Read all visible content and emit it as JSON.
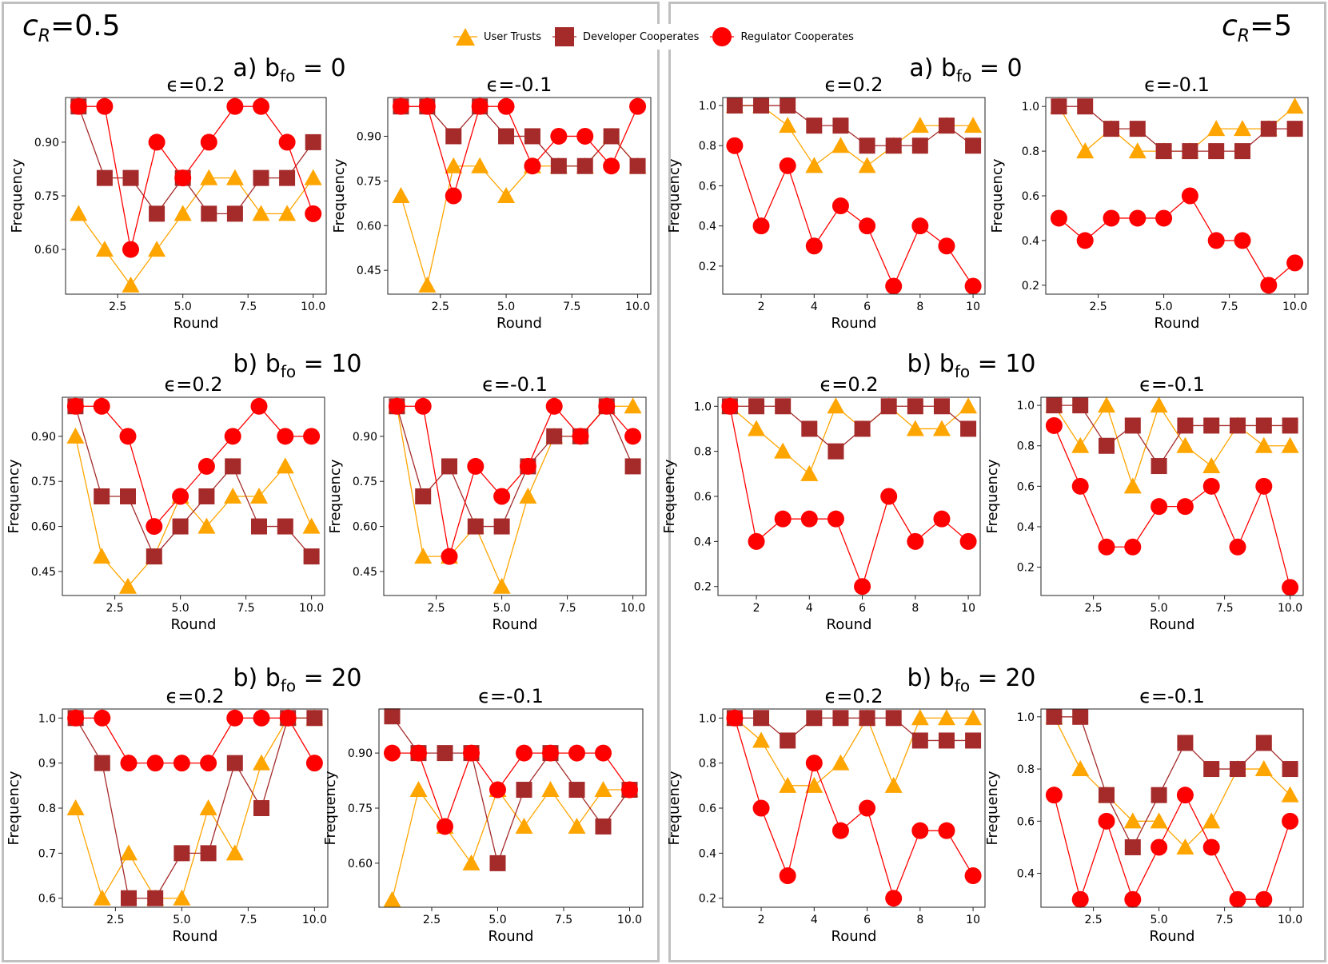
{
  "legend": {
    "items": [
      {
        "name": "User Trusts",
        "color": "#FFA500",
        "marker": "triangle"
      },
      {
        "name": "Developer Cooperates",
        "color": "#A52A2A",
        "marker": "square"
      },
      {
        "name": "Regulator Cooperates",
        "color": "#FF0000",
        "marker": "circle"
      }
    ]
  },
  "panels": [
    {
      "label_main": "c",
      "label_sub": "R",
      "label_val": "=0.5"
    },
    {
      "label_main": "c",
      "label_sub": "R",
      "label_val": "=5"
    }
  ],
  "rows": [
    {
      "prefix": "a) b",
      "sub": "fo",
      "suffix": " = 0"
    },
    {
      "prefix": "b) b",
      "sub": "fo",
      "suffix": " = 10"
    },
    {
      "prefix": "b) b",
      "sub": "fo",
      "suffix": " = 20"
    }
  ],
  "chart_data": [
    {
      "id": "L-a-1",
      "type": "line",
      "title": "ϵ=0.2",
      "xlabel": "Round",
      "ylabel": "Frequency",
      "xlim": [
        0.5,
        10.5
      ],
      "ylim": [
        0.475,
        1.025
      ],
      "xticks": [
        2.5,
        5.0,
        7.5,
        10.0
      ],
      "xtick_labels": [
        "2.5",
        "5.0",
        "7.5",
        "10.0"
      ],
      "yticks": [
        0.6,
        0.75,
        0.9
      ],
      "ytick_labels": [
        "0.60",
        "0.75",
        "0.90"
      ],
      "x": [
        1,
        2,
        3,
        4,
        5,
        6,
        7,
        8,
        9,
        10
      ],
      "series": [
        {
          "name": "User Trusts",
          "values": [
            0.7,
            0.6,
            0.5,
            0.6,
            0.7,
            0.8,
            0.8,
            0.7,
            0.7,
            0.8
          ]
        },
        {
          "name": "Developer Cooperates",
          "values": [
            1.0,
            0.8,
            0.8,
            0.7,
            0.8,
            0.7,
            0.7,
            0.8,
            0.8,
            0.9
          ]
        },
        {
          "name": "Regulator Cooperates",
          "values": [
            1.0,
            1.0,
            0.6,
            0.9,
            0.8,
            0.9,
            1.0,
            1.0,
            0.9,
            0.7
          ]
        }
      ]
    },
    {
      "id": "L-a-2",
      "type": "line",
      "title": "ϵ=-0.1",
      "xlabel": "Round",
      "ylabel": "Frequency",
      "xlim": [
        0.5,
        10.5
      ],
      "ylim": [
        0.37,
        1.03
      ],
      "xticks": [
        2.5,
        5.0,
        7.5,
        10.0
      ],
      "xtick_labels": [
        "2.5",
        "5.0",
        "7.5",
        "10.0"
      ],
      "yticks": [
        0.45,
        0.6,
        0.75,
        0.9
      ],
      "ytick_labels": [
        "0.45",
        "0.60",
        "0.75",
        "0.90"
      ],
      "x": [
        1,
        2,
        3,
        4,
        5,
        6,
        7,
        8,
        9,
        10
      ],
      "series": [
        {
          "name": "User Trusts",
          "values": [
            0.7,
            0.4,
            0.8,
            0.8,
            0.7,
            0.8,
            0.8,
            0.8,
            0.9,
            0.8
          ]
        },
        {
          "name": "Developer Cooperates",
          "values": [
            1.0,
            1.0,
            0.9,
            1.0,
            0.9,
            0.9,
            0.8,
            0.8,
            0.9,
            0.8
          ]
        },
        {
          "name": "Regulator Cooperates",
          "values": [
            1.0,
            1.0,
            0.7,
            1.0,
            1.0,
            0.8,
            0.9,
            0.9,
            0.8,
            1.0
          ]
        }
      ]
    },
    {
      "id": "L-b-1",
      "type": "line",
      "title": "ϵ=0.2",
      "xlabel": "Round",
      "ylabel": "Frequency",
      "xlim": [
        0.5,
        10.5
      ],
      "ylim": [
        0.37,
        1.03
      ],
      "xticks": [
        2.5,
        5.0,
        7.5,
        10.0
      ],
      "xtick_labels": [
        "2.5",
        "5.0",
        "7.5",
        "10.0"
      ],
      "yticks": [
        0.45,
        0.6,
        0.75,
        0.9
      ],
      "ytick_labels": [
        "0.45",
        "0.60",
        "0.75",
        "0.90"
      ],
      "x": [
        1,
        2,
        3,
        4,
        5,
        6,
        7,
        8,
        9,
        10
      ],
      "series": [
        {
          "name": "User Trusts",
          "values": [
            0.9,
            0.5,
            0.4,
            0.5,
            0.7,
            0.6,
            0.7,
            0.7,
            0.8,
            0.6
          ]
        },
        {
          "name": "Developer Cooperates",
          "values": [
            1.0,
            0.7,
            0.7,
            0.5,
            0.6,
            0.7,
            0.8,
            0.6,
            0.6,
            0.5
          ]
        },
        {
          "name": "Regulator Cooperates",
          "values": [
            1.0,
            1.0,
            0.9,
            0.6,
            0.7,
            0.8,
            0.9,
            1.0,
            0.9,
            0.9
          ]
        }
      ]
    },
    {
      "id": "L-b-2",
      "type": "line",
      "title": "ϵ=-0.1",
      "xlabel": "Round",
      "ylabel": "Frequency",
      "xlim": [
        0.5,
        10.5
      ],
      "ylim": [
        0.37,
        1.03
      ],
      "xticks": [
        2.5,
        5.0,
        7.5,
        10.0
      ],
      "xtick_labels": [
        "2.5",
        "5.0",
        "7.5",
        "10.0"
      ],
      "yticks": [
        0.45,
        0.6,
        0.75,
        0.9
      ],
      "ytick_labels": [
        "0.45",
        "0.60",
        "0.75",
        "0.90"
      ],
      "x": [
        1,
        2,
        3,
        4,
        5,
        6,
        7,
        8,
        9,
        10
      ],
      "series": [
        {
          "name": "User Trusts",
          "values": [
            1.0,
            0.5,
            0.5,
            0.6,
            0.4,
            0.7,
            0.9,
            0.9,
            1.0,
            1.0
          ]
        },
        {
          "name": "Developer Cooperates",
          "values": [
            1.0,
            0.7,
            0.8,
            0.6,
            0.6,
            0.8,
            0.9,
            0.9,
            1.0,
            0.8
          ]
        },
        {
          "name": "Regulator Cooperates",
          "values": [
            1.0,
            1.0,
            0.5,
            0.8,
            0.7,
            0.8,
            1.0,
            0.9,
            1.0,
            0.9
          ]
        }
      ]
    },
    {
      "id": "L-c-1",
      "type": "line",
      "title": "ϵ=0.2",
      "xlabel": "Round",
      "ylabel": "Frequency",
      "xlim": [
        0.5,
        10.5
      ],
      "ylim": [
        0.58,
        1.02
      ],
      "xticks": [
        2.5,
        5.0,
        7.5,
        10.0
      ],
      "xtick_labels": [
        "2.5",
        "5.0",
        "7.5",
        "10.0"
      ],
      "yticks": [
        0.6,
        0.7,
        0.8,
        0.9,
        1.0
      ],
      "ytick_labels": [
        "0.6",
        "0.7",
        "0.8",
        "0.9",
        "1.0"
      ],
      "x": [
        1,
        2,
        3,
        4,
        5,
        6,
        7,
        8,
        9,
        10
      ],
      "series": [
        {
          "name": "User Trusts",
          "values": [
            0.8,
            0.6,
            0.7,
            0.6,
            0.6,
            0.8,
            0.7,
            0.9,
            1.0,
            1.0
          ]
        },
        {
          "name": "Developer Cooperates",
          "values": [
            1.0,
            0.9,
            0.6,
            0.6,
            0.7,
            0.7,
            0.9,
            0.8,
            1.0,
            1.0
          ]
        },
        {
          "name": "Regulator Cooperates",
          "values": [
            1.0,
            1.0,
            0.9,
            0.9,
            0.9,
            0.9,
            1.0,
            1.0,
            1.0,
            0.9
          ]
        }
      ]
    },
    {
      "id": "L-c-2",
      "type": "line",
      "title": "ϵ=-0.1",
      "xlabel": "Round",
      "ylabel": "Frequency",
      "xlim": [
        0.5,
        10.5
      ],
      "ylim": [
        0.48,
        1.02
      ],
      "xticks": [
        2.5,
        5.0,
        7.5,
        10.0
      ],
      "xtick_labels": [
        "2.5",
        "5.0",
        "7.5",
        "10.0"
      ],
      "yticks": [
        0.6,
        0.75,
        0.9
      ],
      "ytick_labels": [
        "0.60",
        "0.75",
        "0.90"
      ],
      "x": [
        1,
        2,
        3,
        4,
        5,
        6,
        7,
        8,
        9,
        10
      ],
      "series": [
        {
          "name": "User Trusts",
          "values": [
            0.5,
            0.8,
            0.7,
            0.6,
            0.8,
            0.7,
            0.8,
            0.7,
            0.8,
            0.8
          ]
        },
        {
          "name": "Developer Cooperates",
          "values": [
            1.0,
            0.9,
            0.9,
            0.9,
            0.6,
            0.8,
            0.9,
            0.8,
            0.7,
            0.8
          ]
        },
        {
          "name": "Regulator Cooperates",
          "values": [
            0.9,
            0.9,
            0.7,
            0.9,
            0.8,
            0.9,
            0.9,
            0.9,
            0.9,
            0.8
          ]
        }
      ]
    },
    {
      "id": "R-a-1",
      "type": "line",
      "title": "ϵ=0.2",
      "xlabel": "Round",
      "ylabel": "Frequency",
      "xlim": [
        0.55,
        10.45
      ],
      "ylim": [
        0.06,
        1.04
      ],
      "xticks": [
        2,
        4,
        6,
        8,
        10
      ],
      "xtick_labels": [
        "2",
        "4",
        "6",
        "8",
        "10"
      ],
      "yticks": [
        0.2,
        0.4,
        0.6,
        0.8,
        1.0
      ],
      "ytick_labels": [
        "0.2",
        "0.4",
        "0.6",
        "0.8",
        "1.0"
      ],
      "x": [
        1,
        2,
        3,
        4,
        5,
        6,
        7,
        8,
        9,
        10
      ],
      "series": [
        {
          "name": "User Trusts",
          "values": [
            1.0,
            1.0,
            0.9,
            0.7,
            0.8,
            0.7,
            0.8,
            0.9,
            0.9,
            0.9
          ]
        },
        {
          "name": "Developer Cooperates",
          "values": [
            1.0,
            1.0,
            1.0,
            0.9,
            0.9,
            0.8,
            0.8,
            0.8,
            0.9,
            0.8
          ]
        },
        {
          "name": "Regulator Cooperates",
          "values": [
            0.8,
            0.4,
            0.7,
            0.3,
            0.5,
            0.4,
            0.1,
            0.4,
            0.3,
            0.1
          ]
        }
      ]
    },
    {
      "id": "R-a-2",
      "type": "line",
      "title": "ϵ=-0.1",
      "xlabel": "Round",
      "ylabel": "Frequency",
      "xlim": [
        0.5,
        10.5
      ],
      "ylim": [
        0.16,
        1.04
      ],
      "xticks": [
        2.5,
        5.0,
        7.5,
        10.0
      ],
      "xtick_labels": [
        "2.5",
        "5.0",
        "7.5",
        "10.0"
      ],
      "yticks": [
        0.2,
        0.4,
        0.6,
        0.8,
        1.0
      ],
      "ytick_labels": [
        "0.2",
        "0.4",
        "0.6",
        "0.8",
        "1.0"
      ],
      "x": [
        1,
        2,
        3,
        4,
        5,
        6,
        7,
        8,
        9,
        10
      ],
      "series": [
        {
          "name": "User Trusts",
          "values": [
            1.0,
            0.8,
            0.9,
            0.8,
            0.8,
            0.8,
            0.9,
            0.9,
            0.9,
            1.0
          ]
        },
        {
          "name": "Developer Cooperates",
          "values": [
            1.0,
            1.0,
            0.9,
            0.9,
            0.8,
            0.8,
            0.8,
            0.8,
            0.9,
            0.9
          ]
        },
        {
          "name": "Regulator Cooperates",
          "values": [
            0.5,
            0.4,
            0.5,
            0.5,
            0.5,
            0.6,
            0.4,
            0.4,
            0.2,
            0.3
          ]
        }
      ]
    },
    {
      "id": "R-b-1",
      "type": "line",
      "title": "ϵ=0.2",
      "xlabel": "Round",
      "ylabel": "Frequency",
      "xlim": [
        0.55,
        10.45
      ],
      "ylim": [
        0.16,
        1.04
      ],
      "xticks": [
        2,
        4,
        6,
        8,
        10
      ],
      "xtick_labels": [
        "2",
        "4",
        "6",
        "8",
        "10"
      ],
      "yticks": [
        0.2,
        0.4,
        0.6,
        0.8,
        1.0
      ],
      "ytick_labels": [
        "0.2",
        "0.4",
        "0.6",
        "0.8",
        "1.0"
      ],
      "x": [
        1,
        2,
        3,
        4,
        5,
        6,
        7,
        8,
        9,
        10
      ],
      "series": [
        {
          "name": "User Trusts",
          "values": [
            1.0,
            0.9,
            0.8,
            0.7,
            1.0,
            0.9,
            1.0,
            0.9,
            0.9,
            1.0
          ]
        },
        {
          "name": "Developer Cooperates",
          "values": [
            1.0,
            1.0,
            1.0,
            0.9,
            0.8,
            0.9,
            1.0,
            1.0,
            1.0,
            0.9
          ]
        },
        {
          "name": "Regulator Cooperates",
          "values": [
            1.0,
            0.4,
            0.5,
            0.5,
            0.5,
            0.2,
            0.6,
            0.4,
            0.5,
            0.4
          ]
        }
      ]
    },
    {
      "id": "R-b-2",
      "type": "line",
      "title": "ϵ=-0.1",
      "xlabel": "Round",
      "ylabel": "Frequency",
      "xlim": [
        0.5,
        10.5
      ],
      "ylim": [
        0.06,
        1.04
      ],
      "xticks": [
        2.5,
        5.0,
        7.5,
        10.0
      ],
      "xtick_labels": [
        "2.5",
        "5.0",
        "7.5",
        "10.0"
      ],
      "yticks": [
        0.2,
        0.4,
        0.6,
        0.8,
        1.0
      ],
      "ytick_labels": [
        "0.2",
        "0.4",
        "0.6",
        "0.8",
        "1.0"
      ],
      "x": [
        1,
        2,
        3,
        4,
        5,
        6,
        7,
        8,
        9,
        10
      ],
      "series": [
        {
          "name": "User Trusts",
          "values": [
            1.0,
            0.8,
            1.0,
            0.6,
            1.0,
            0.8,
            0.7,
            0.9,
            0.8,
            0.8
          ]
        },
        {
          "name": "Developer Cooperates",
          "values": [
            1.0,
            1.0,
            0.8,
            0.9,
            0.7,
            0.9,
            0.9,
            0.9,
            0.9,
            0.9
          ]
        },
        {
          "name": "Regulator Cooperates",
          "values": [
            0.9,
            0.6,
            0.3,
            0.3,
            0.5,
            0.5,
            0.6,
            0.3,
            0.6,
            0.1
          ]
        }
      ]
    },
    {
      "id": "R-c-1",
      "type": "line",
      "title": "ϵ=0.2",
      "xlabel": "Round",
      "ylabel": "Frequency",
      "xlim": [
        0.55,
        10.45
      ],
      "ylim": [
        0.16,
        1.04
      ],
      "xticks": [
        2,
        4,
        6,
        8,
        10
      ],
      "xtick_labels": [
        "2",
        "4",
        "6",
        "8",
        "10"
      ],
      "yticks": [
        0.2,
        0.4,
        0.6,
        0.8,
        1.0
      ],
      "ytick_labels": [
        "0.2",
        "0.4",
        "0.6",
        "0.8",
        "1.0"
      ],
      "x": [
        1,
        2,
        3,
        4,
        5,
        6,
        7,
        8,
        9,
        10
      ],
      "series": [
        {
          "name": "User Trusts",
          "values": [
            1.0,
            0.9,
            0.7,
            0.7,
            0.8,
            1.0,
            0.7,
            1.0,
            1.0,
            1.0
          ]
        },
        {
          "name": "Developer Cooperates",
          "values": [
            1.0,
            1.0,
            0.9,
            1.0,
            1.0,
            1.0,
            1.0,
            0.9,
            0.9,
            0.9
          ]
        },
        {
          "name": "Regulator Cooperates",
          "values": [
            1.0,
            0.6,
            0.3,
            0.8,
            0.5,
            0.6,
            0.2,
            0.5,
            0.5,
            0.3
          ]
        }
      ]
    },
    {
      "id": "R-c-2",
      "type": "line",
      "title": "ϵ=-0.1",
      "xlabel": "Round",
      "ylabel": "Frequency",
      "xlim": [
        0.5,
        10.5
      ],
      "ylim": [
        0.27,
        1.03
      ],
      "xticks": [
        2.5,
        5.0,
        7.5,
        10.0
      ],
      "xtick_labels": [
        "2.5",
        "5.0",
        "7.5",
        "10.0"
      ],
      "yticks": [
        0.4,
        0.6,
        0.8,
        1.0
      ],
      "ytick_labels": [
        "0.4",
        "0.6",
        "0.8",
        "1.0"
      ],
      "x": [
        1,
        2,
        3,
        4,
        5,
        6,
        7,
        8,
        9,
        10
      ],
      "series": [
        {
          "name": "User Trusts",
          "values": [
            1.0,
            0.8,
            0.7,
            0.6,
            0.6,
            0.5,
            0.6,
            0.8,
            0.8,
            0.7
          ]
        },
        {
          "name": "Developer Cooperates",
          "values": [
            1.0,
            1.0,
            0.7,
            0.5,
            0.7,
            0.9,
            0.8,
            0.8,
            0.9,
            0.8
          ]
        },
        {
          "name": "Regulator Cooperates",
          "values": [
            0.7,
            0.3,
            0.6,
            0.3,
            0.5,
            0.7,
            0.5,
            0.3,
            0.3,
            0.6
          ]
        }
      ]
    }
  ]
}
